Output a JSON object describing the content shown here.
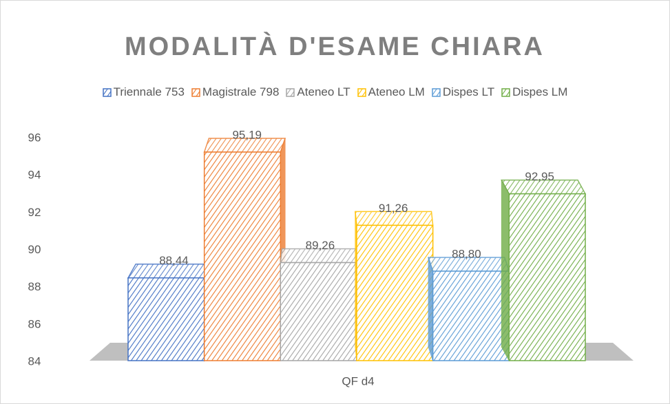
{
  "chart_data": {
    "type": "bar3d",
    "title": "MODALITÀ D'ESAME CHIARA",
    "categories": [
      "QF d4"
    ],
    "series": [
      {
        "name": "Triennale 753",
        "color": "#4472c4",
        "values": [
          88.44
        ],
        "value_labels": [
          "88,44"
        ]
      },
      {
        "name": "Magistrale 798",
        "color": "#ed7d31",
        "values": [
          95.19
        ],
        "value_labels": [
          "95,19"
        ]
      },
      {
        "name": "Ateneo LT",
        "color": "#a5a5a5",
        "values": [
          89.26
        ],
        "value_labels": [
          "89,26"
        ]
      },
      {
        "name": "Ateneo LM",
        "color": "#ffc000",
        "values": [
          91.26
        ],
        "value_labels": [
          "91,26"
        ]
      },
      {
        "name": "Dispes LT",
        "color": "#5b9bd5",
        "values": [
          88.8
        ],
        "value_labels": [
          "88,80"
        ]
      },
      {
        "name": "Dispes LM",
        "color": "#70ad47",
        "values": [
          92.95
        ],
        "value_labels": [
          "92,95"
        ]
      }
    ],
    "ylim": [
      84,
      96
    ],
    "yticks": [
      84,
      86,
      88,
      90,
      92,
      94,
      96
    ],
    "legend": "top"
  }
}
